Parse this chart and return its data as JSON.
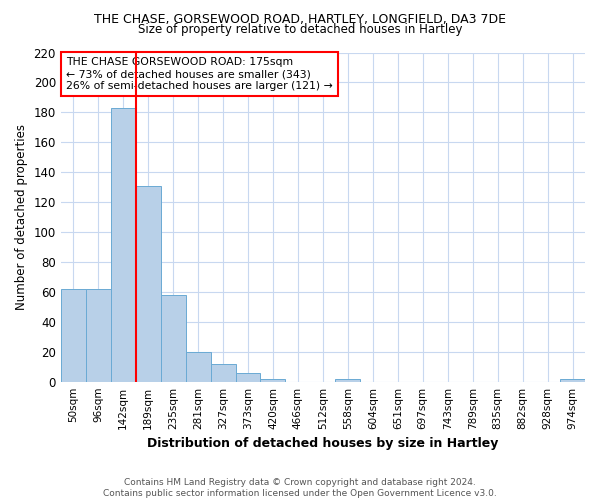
{
  "title": "THE CHASE, GORSEWOOD ROAD, HARTLEY, LONGFIELD, DA3 7DE",
  "subtitle": "Size of property relative to detached houses in Hartley",
  "xlabel": "Distribution of detached houses by size in Hartley",
  "ylabel": "Number of detached properties",
  "footnote1": "Contains HM Land Registry data © Crown copyright and database right 2024.",
  "footnote2": "Contains public sector information licensed under the Open Government Licence v3.0.",
  "annotation_line1": "THE CHASE GORSEWOOD ROAD: 175sqm",
  "annotation_line2": "← 73% of detached houses are smaller (343)",
  "annotation_line3": "26% of semi-detached houses are larger (121) →",
  "bar_color": "#b8d0e8",
  "bar_edge_color": "#6aaad4",
  "red_line_color": "red",
  "ylim": [
    0,
    220
  ],
  "yticks": [
    0,
    20,
    40,
    60,
    80,
    100,
    120,
    140,
    160,
    180,
    200,
    220
  ],
  "bins": [
    "50sqm",
    "96sqm",
    "142sqm",
    "189sqm",
    "235sqm",
    "281sqm",
    "327sqm",
    "373sqm",
    "420sqm",
    "466sqm",
    "512sqm",
    "558sqm",
    "604sqm",
    "651sqm",
    "697sqm",
    "743sqm",
    "789sqm",
    "835sqm",
    "882sqm",
    "928sqm",
    "974sqm"
  ],
  "values": [
    62,
    62,
    183,
    131,
    58,
    20,
    12,
    6,
    2,
    0,
    0,
    2,
    0,
    0,
    0,
    0,
    0,
    0,
    0,
    0,
    2
  ],
  "bg_color": "#ffffff",
  "grid_color": "#c8d8f0"
}
